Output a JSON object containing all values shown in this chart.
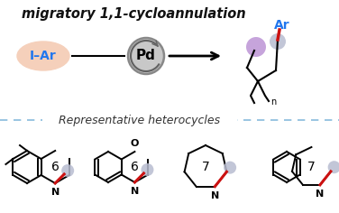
{
  "title": "migratory 1,1-cycloannulation",
  "background_color": "#ffffff",
  "title_color": "#111111",
  "title_fontsize": 10.5,
  "pd_label": "Pd",
  "pd_circle_facecolor": "#c8c8c8",
  "pd_circle_edgecolor": "#888888",
  "reactant_label_I": "I",
  "reactant_label_dash": "–",
  "reactant_label_Ar": "Ar",
  "reactant_color": "#2277ee",
  "reactant_bg": "#f5d0bb",
  "ar_label": "Ar",
  "ar_color": "#2277ee",
  "n_subscript": "n",
  "rep_het_text": "Representative heterocycles",
  "rep_het_color": "#333333",
  "rep_het_fontsize": 9,
  "dashed_line_color": "#88bbdd",
  "red_bond_color": "#cc1111",
  "gray_dot_color": "#b8bcd0",
  "purple_dot_color": "#c09ad8",
  "figsize": [
    3.76,
    2.36
  ],
  "dpi": 100
}
